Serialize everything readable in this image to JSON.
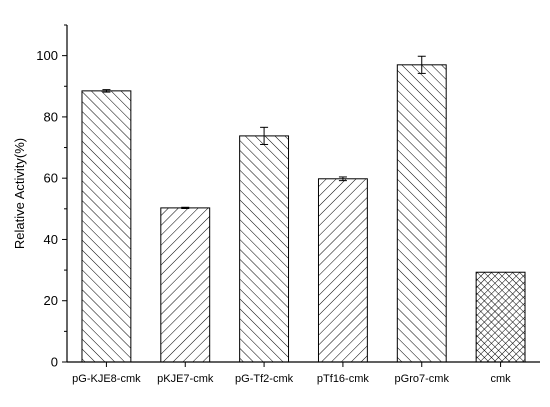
{
  "chart_data": {
    "type": "bar",
    "title": "",
    "xlabel": "",
    "ylabel": "Relative Activity(%)",
    "ylim": [
      0,
      110
    ],
    "y_ticks": [
      0,
      20,
      40,
      60,
      80,
      100
    ],
    "grid": false,
    "categories": [
      "pG-KJE8-cmk",
      "pKJE7-cmk",
      "pG-Tf2-cmk",
      "pTf16-cmk",
      "pGro7-cmk",
      "cmk"
    ],
    "values": [
      88.5,
      50.3,
      73.8,
      59.8,
      97.0,
      29.3
    ],
    "errors": [
      0.4,
      0.2,
      2.8,
      0.6,
      2.8,
      0
    ],
    "patterns": [
      "hatch-back",
      "hatch-forward",
      "hatch-back",
      "hatch-forward",
      "hatch-back",
      "crosshatch"
    ]
  },
  "colors": {
    "axis": "#000000",
    "bar_fill": "#ffffff",
    "hatch": "#000000"
  }
}
